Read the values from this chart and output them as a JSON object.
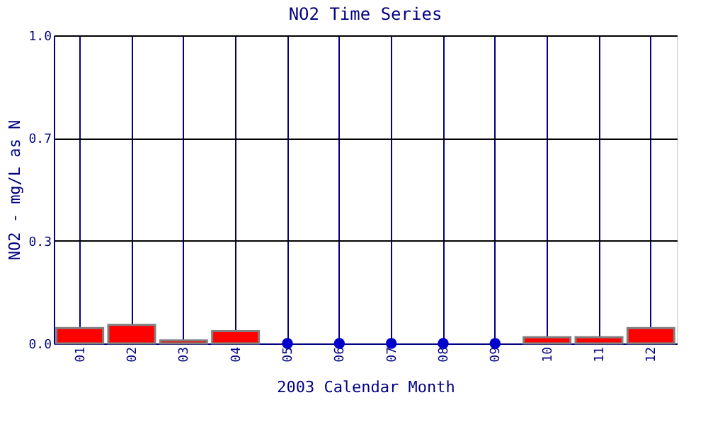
{
  "chart_data": {
    "type": "bar",
    "title": "NO2 Time Series",
    "xlabel": "2003 Calendar Month",
    "ylabel": "NO2 - mg/L as N",
    "categories": [
      "01",
      "02",
      "03",
      "04",
      "05",
      "06",
      "07",
      "08",
      "09",
      "10",
      "11",
      "12"
    ],
    "series": [
      {
        "type": "bar",
        "color": "#ff0000",
        "values": [
          0.05,
          0.06,
          0.01,
          0.04,
          null,
          null,
          null,
          null,
          null,
          0.02,
          0.02,
          0.05
        ]
      },
      {
        "type": "scatter",
        "color": "#0000cc",
        "marker": "circle",
        "values": [
          null,
          null,
          null,
          null,
          0,
          0,
          0,
          0,
          0,
          null,
          null,
          null
        ]
      }
    ],
    "ylim": [
      0,
      1
    ],
    "yticks": [
      {
        "value": 0,
        "label": "0.0"
      },
      {
        "value": 0.333,
        "label": "0.3"
      },
      {
        "value": 0.667,
        "label": "0.7"
      },
      {
        "value": 1,
        "label": "1.0"
      }
    ],
    "grid": true
  }
}
